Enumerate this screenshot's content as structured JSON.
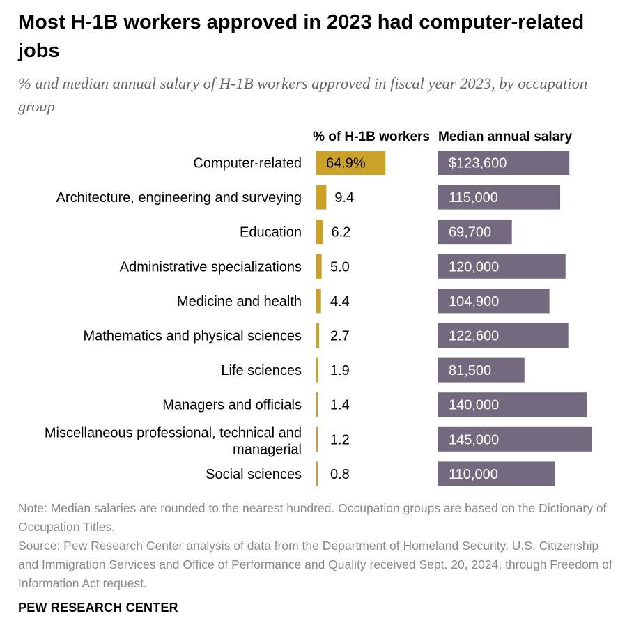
{
  "header": {
    "title": "Most H-1B workers approved in 2023 had computer-related jobs",
    "subtitle": "% and median annual salary of H-1B workers approved in fiscal year 2023, by occupation group"
  },
  "colors": {
    "share_bar": "#c9a227",
    "salary_bar": "#736a7f",
    "label_text": "#000000",
    "note_text": "#8a8a8a"
  },
  "chart_data": {
    "type": "bar",
    "title": "Most H-1B workers approved in 2023 had computer-related jobs",
    "subtitle": "% and median annual salary of H-1B workers approved in fiscal year 2023, by occupation group",
    "orientation": "horizontal",
    "categories": [
      "Computer-related",
      "Architecture, engineering and surveying",
      "Education",
      "Administrative specializations",
      "Medicine and health",
      "Mathematics and physical sciences",
      "Life sciences",
      "Managers and officials",
      "Miscellaneous professional, technical and managerial",
      "Social sciences"
    ],
    "series": [
      {
        "name": "% of H-1B workers",
        "values": [
          64.9,
          9.4,
          6.2,
          5.0,
          4.4,
          2.7,
          1.9,
          1.4,
          1.2,
          0.8
        ],
        "labels": [
          "64.9%",
          "9.4",
          "6.2",
          "5.0",
          "4.4",
          "2.7",
          "1.9",
          "1.4",
          "1.2",
          "0.8"
        ]
      },
      {
        "name": "Median annual salary",
        "values": [
          123600,
          115000,
          69700,
          120000,
          104900,
          122600,
          81500,
          140000,
          145000,
          110000
        ],
        "labels": [
          "$123,600",
          "115,000",
          "69,700",
          "120,000",
          "104,900",
          "122,600",
          "81,500",
          "140,000",
          "145,000",
          "110,000"
        ]
      }
    ],
    "xlim_share": [
      0,
      100
    ],
    "xlim_salary": [
      0,
      150000
    ],
    "grid": false,
    "legend": "column headers above bars"
  },
  "footer": {
    "note": "Note: Median salaries are rounded to the nearest hundred. Occupation groups are based on the Dictionary of Occupation Titles.",
    "source": "Source: Pew Research Center analysis of data from the Department of Homeland Security, U.S. Citizenship and Immigration Services and Office of Performance and Quality received Sept. 20, 2024, through Freedom of Information Act request.",
    "brand": "PEW RESEARCH CENTER"
  }
}
